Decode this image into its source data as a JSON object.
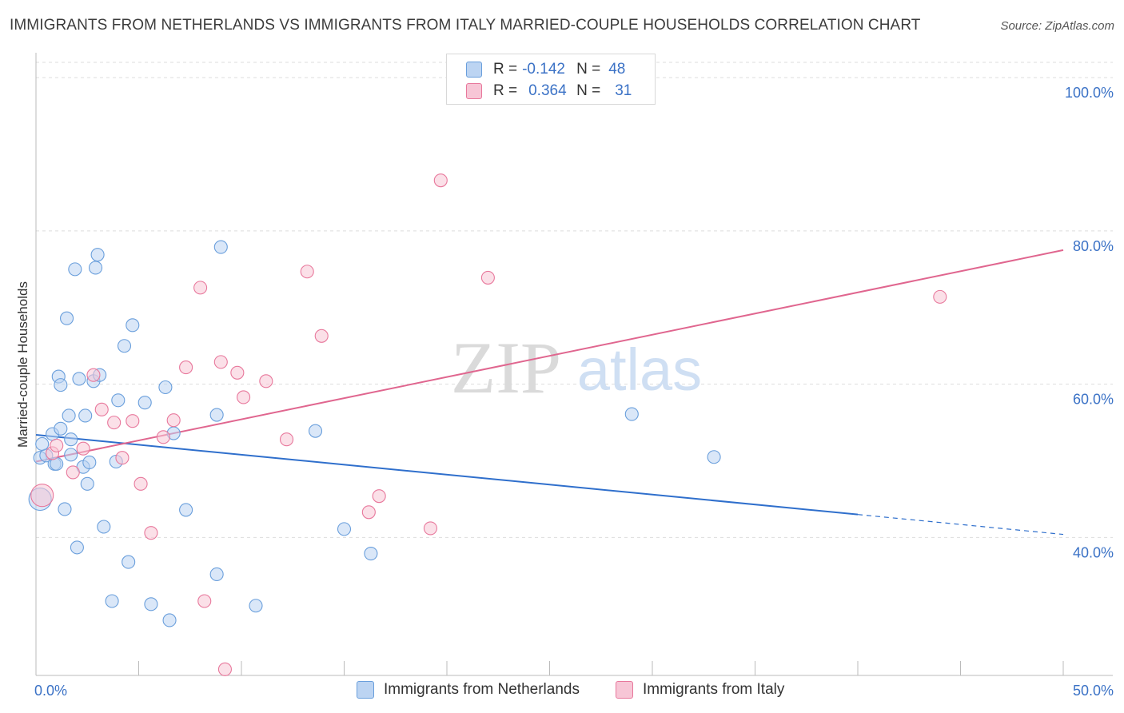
{
  "title": "IMMIGRANTS FROM NETHERLANDS VS IMMIGRANTS FROM ITALY MARRIED-COUPLE HOUSEHOLDS CORRELATION CHART",
  "source": "Source: ZipAtlas.com",
  "watermark": {
    "zip": "ZIP",
    "atlas": "atlas"
  },
  "legend": {
    "r_label": "R =",
    "n_label": "N =",
    "rows": [
      {
        "r": "-0.142",
        "n": "48"
      },
      {
        "r": "0.364",
        "n": "31"
      }
    ]
  },
  "chart_data": {
    "type": "scatter",
    "xlabel": "",
    "ylabel": "Married-couple Households",
    "xlim": [
      0,
      50
    ],
    "ylim": [
      22,
      102
    ],
    "x_tick_labels": [
      "0.0%",
      "50.0%"
    ],
    "y_ticks": [
      {
        "value": 40,
        "label": "40.0%"
      },
      {
        "value": 60,
        "label": "60.0%"
      },
      {
        "value": 80,
        "label": "80.0%"
      },
      {
        "value": 100,
        "label": "100.0%"
      }
    ],
    "series": [
      {
        "name": "Immigrants from Netherlands",
        "color": "#6a9fdc",
        "fill": "#bcd4f2",
        "trend": {
          "x0": 0,
          "y0": 53.4,
          "x1": 40,
          "y1": 43.0,
          "dash_x1": 50,
          "dash_y1": 40.4
        },
        "points": [
          [
            0.2,
            50.4
          ],
          [
            0.5,
            50.7
          ],
          [
            0.8,
            53.5
          ],
          [
            0.3,
            52.2
          ],
          [
            0.9,
            49.6
          ],
          [
            1.2,
            54.2
          ],
          [
            1.0,
            49.6
          ],
          [
            1.1,
            61.0
          ],
          [
            1.2,
            59.9
          ],
          [
            1.5,
            68.6
          ],
          [
            1.6,
            55.9
          ],
          [
            1.7,
            52.8
          ],
          [
            1.7,
            50.8
          ],
          [
            1.9,
            75.0
          ],
          [
            2.1,
            60.7
          ],
          [
            2.3,
            49.2
          ],
          [
            2.4,
            55.9
          ],
          [
            2.5,
            47.0
          ],
          [
            2.6,
            49.8
          ],
          [
            2.8,
            60.4
          ],
          [
            2.9,
            75.2
          ],
          [
            3.0,
            76.9
          ],
          [
            3.1,
            61.2
          ],
          [
            3.3,
            41.4
          ],
          [
            3.7,
            31.7
          ],
          [
            3.9,
            49.9
          ],
          [
            4.0,
            57.9
          ],
          [
            4.3,
            65.0
          ],
          [
            4.5,
            36.8
          ],
          [
            4.7,
            67.7
          ],
          [
            5.3,
            57.6
          ],
          [
            5.6,
            31.3
          ],
          [
            6.3,
            59.6
          ],
          [
            6.5,
            29.2
          ],
          [
            6.7,
            53.6
          ],
          [
            7.3,
            43.6
          ],
          [
            8.8,
            56.0
          ],
          [
            8.8,
            35.2
          ],
          [
            9.0,
            77.9
          ],
          [
            10.7,
            31.1
          ],
          [
            13.6,
            53.9
          ],
          [
            15.0,
            41.1
          ],
          [
            16.3,
            37.9
          ],
          [
            29.0,
            56.1
          ],
          [
            33.0,
            50.5
          ],
          [
            1.4,
            43.7
          ],
          [
            2.0,
            38.7
          ],
          [
            0.2,
            45.0
          ]
        ]
      },
      {
        "name": "Immigrants from Italy",
        "color": "#e8789c",
        "fill": "#f7c6d6",
        "trend": {
          "x0": 0,
          "y0": 49.9,
          "x1": 50,
          "y1": 77.5
        },
        "points": [
          [
            0.3,
            45.5
          ],
          [
            0.8,
            51.0
          ],
          [
            1.0,
            52.0
          ],
          [
            1.8,
            48.5
          ],
          [
            2.3,
            51.6
          ],
          [
            2.8,
            61.2
          ],
          [
            3.2,
            56.7
          ],
          [
            3.8,
            55.0
          ],
          [
            4.2,
            50.4
          ],
          [
            4.7,
            55.2
          ],
          [
            5.1,
            47.0
          ],
          [
            5.6,
            40.6
          ],
          [
            6.2,
            53.1
          ],
          [
            6.7,
            55.3
          ],
          [
            7.3,
            62.2
          ],
          [
            8.0,
            72.6
          ],
          [
            8.2,
            31.7
          ],
          [
            9.0,
            62.9
          ],
          [
            9.2,
            22.8
          ],
          [
            9.8,
            61.5
          ],
          [
            10.1,
            58.3
          ],
          [
            11.2,
            60.4
          ],
          [
            12.2,
            52.8
          ],
          [
            13.2,
            74.7
          ],
          [
            13.9,
            66.3
          ],
          [
            16.2,
            43.3
          ],
          [
            16.7,
            45.4
          ],
          [
            19.2,
            41.2
          ],
          [
            19.7,
            86.6
          ],
          [
            22.0,
            73.9
          ],
          [
            44.0,
            71.4
          ]
        ]
      }
    ]
  }
}
